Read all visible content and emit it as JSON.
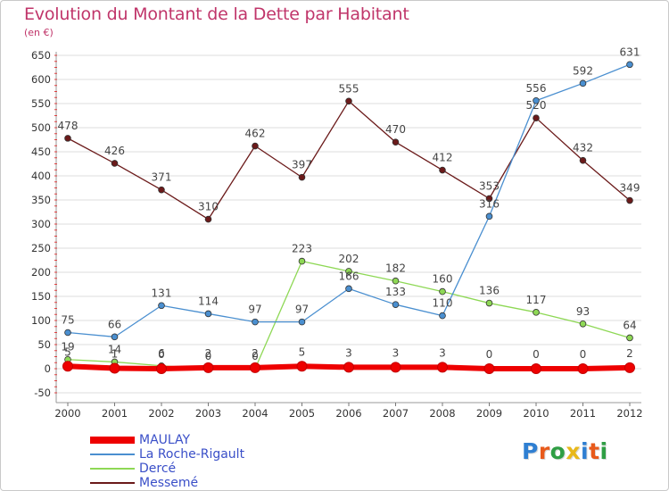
{
  "header": {
    "title": "Evolution du Montant de la Dette par Habitant",
    "subtitle": "(en €)"
  },
  "logo": {
    "text": "Proxiti",
    "colors": [
      "#2f7fd2",
      "#e85a1b",
      "#2f9e44",
      "#e8b81b",
      "#2f7fd2",
      "#e85a1b",
      "#2f9e44"
    ]
  },
  "chart_data": {
    "type": "line",
    "title": "Evolution du Montant de la Dette par Habitant",
    "subtitle": "(en €)",
    "x": [
      "2000",
      "2001",
      "2002",
      "2003",
      "2004",
      "2005",
      "2006",
      "2007",
      "2008",
      "2009",
      "2010",
      "2011",
      "2012"
    ],
    "yticks": [
      "650",
      "600",
      "550",
      "500",
      "450",
      "400",
      "350",
      "300",
      "250",
      "200",
      "150",
      "100",
      "50",
      "0",
      "-50"
    ],
    "ylim": [
      -50,
      650
    ],
    "grid": "horizontal",
    "legend_position": "bottom-left",
    "series": [
      {
        "name": "MAULAY",
        "color": "#ee0000",
        "values": [
          5,
          1,
          0,
          2,
          2,
          5,
          3,
          3,
          3,
          0,
          0,
          0,
          2
        ]
      },
      {
        "name": "La Roche-Rigault",
        "color": "#4a8fd0",
        "values": [
          75,
          66,
          131,
          114,
          97,
          97,
          166,
          133,
          110,
          316,
          556,
          592,
          631
        ]
      },
      {
        "name": "Dercé",
        "color": "#8ed855",
        "values": [
          19,
          14,
          6,
          0,
          0,
          223,
          202,
          182,
          160,
          136,
          117,
          93,
          64
        ]
      },
      {
        "name": "Messemé",
        "color": "#6b1a1a",
        "values": [
          478,
          426,
          371,
          310,
          462,
          397,
          555,
          470,
          412,
          353,
          520,
          432,
          349
        ]
      }
    ]
  }
}
